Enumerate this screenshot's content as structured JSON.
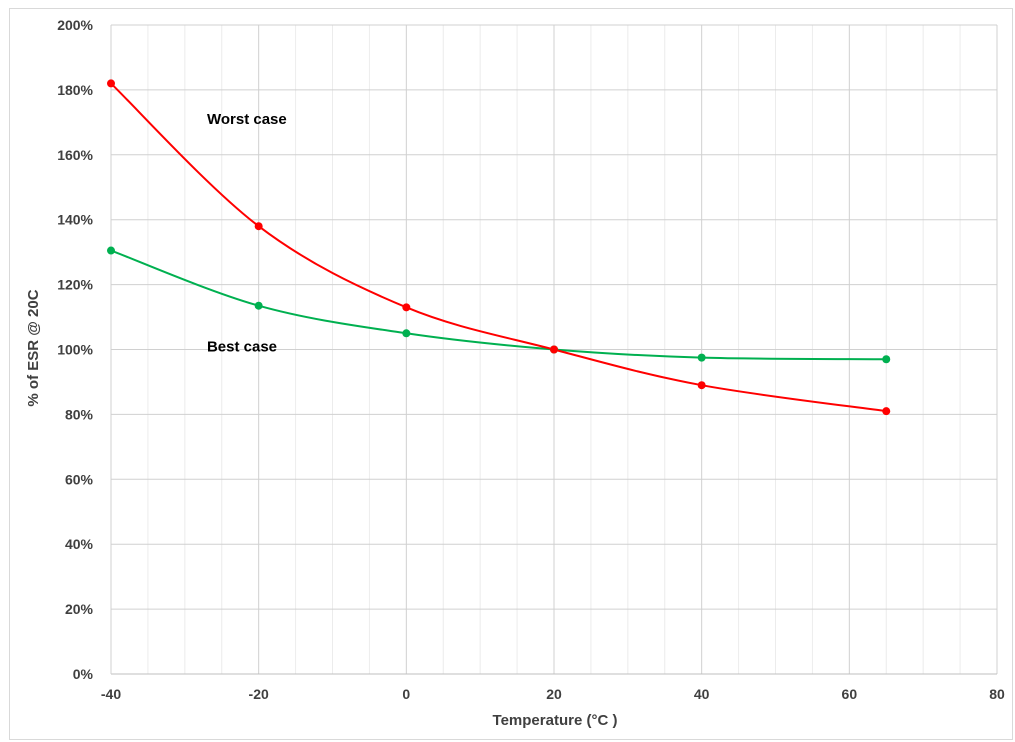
{
  "chart_data": {
    "type": "line",
    "title": "",
    "xlabel": "Temperature (°C )",
    "ylabel": "% of ESR @ 20C",
    "xlim": [
      -40,
      80
    ],
    "ylim": [
      0,
      200
    ],
    "x_ticks": [
      "-40",
      "-20",
      "0",
      "20",
      "40",
      "60",
      "80"
    ],
    "y_ticks": [
      "0%",
      "20%",
      "40%",
      "60%",
      "80%",
      "100%",
      "120%",
      "140%",
      "160%",
      "180%",
      "200%"
    ],
    "grid": true,
    "smooth": true,
    "series": [
      {
        "name": "Worst case",
        "color": "#ff0000",
        "x": [
          -40,
          -20,
          0,
          20,
          40,
          65
        ],
        "y": [
          182,
          138,
          113,
          100,
          89,
          81
        ]
      },
      {
        "name": "Best case",
        "color": "#00b050",
        "x": [
          -40,
          -20,
          0,
          20,
          40,
          65
        ],
        "y": [
          130.5,
          113.5,
          105,
          100,
          97.5,
          97
        ]
      }
    ],
    "annotations": [
      {
        "text": "Worst case",
        "x": -27,
        "y": 171
      },
      {
        "text": "Best case",
        "x": -27,
        "y": 101
      }
    ]
  }
}
